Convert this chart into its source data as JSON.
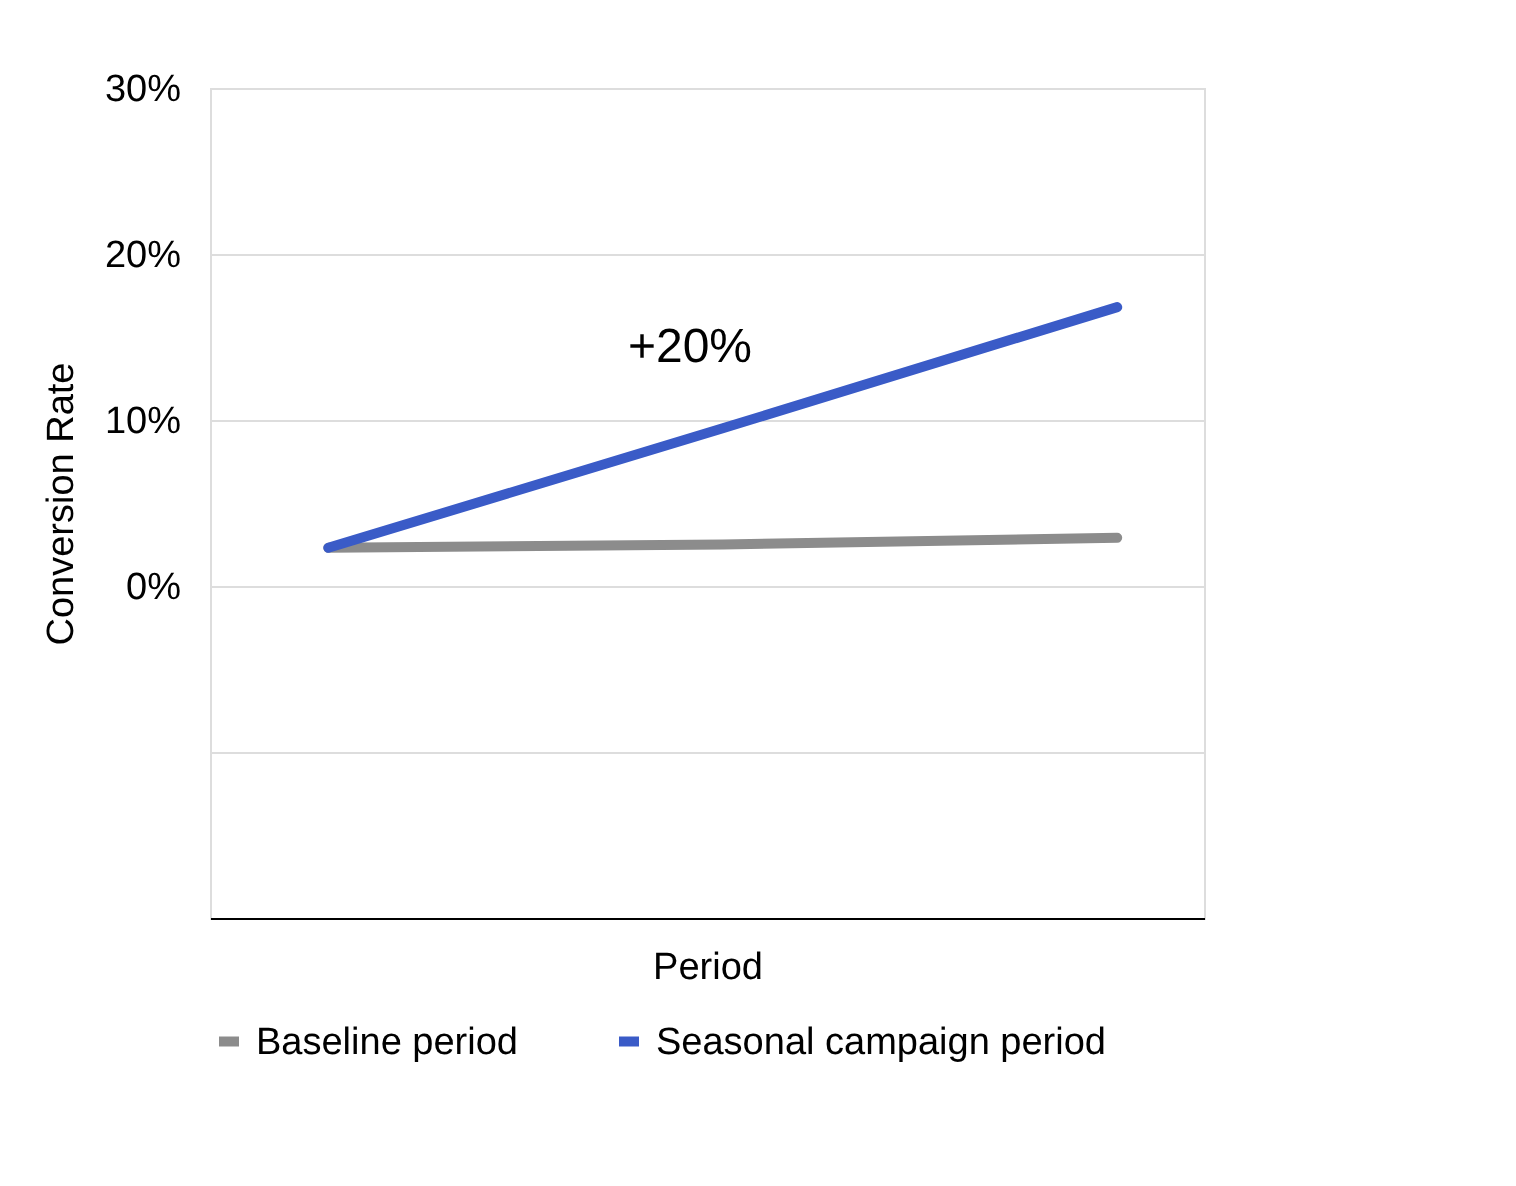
{
  "chart_data": {
    "type": "line",
    "xlabel": "Period",
    "ylabel": "Conversion Rate",
    "categories": [
      null,
      null,
      null
    ],
    "series": [
      {
        "name": "Baseline period",
        "color": "#8c8c8c",
        "values": [
          2.3,
          2.5,
          2.9
        ]
      },
      {
        "name": "Seasonal campaign period",
        "color": "#3a5bc7",
        "values": [
          2.3,
          9.5,
          16.8
        ]
      }
    ],
    "ylim": [
      -20,
      30
    ],
    "yticks": [
      {
        "value": -20,
        "label": null
      },
      {
        "value": -10,
        "label": null
      },
      {
        "value": 0,
        "label": "0%"
      },
      {
        "value": 10,
        "label": "10%"
      },
      {
        "value": 20,
        "label": "20%"
      },
      {
        "value": 30,
        "label": "30%"
      }
    ],
    "annotations": [
      "+20%"
    ],
    "grid": "y",
    "legend": "bottom",
    "tick_labels": "y",
    "marker": "none",
    "line_style": "solid"
  }
}
